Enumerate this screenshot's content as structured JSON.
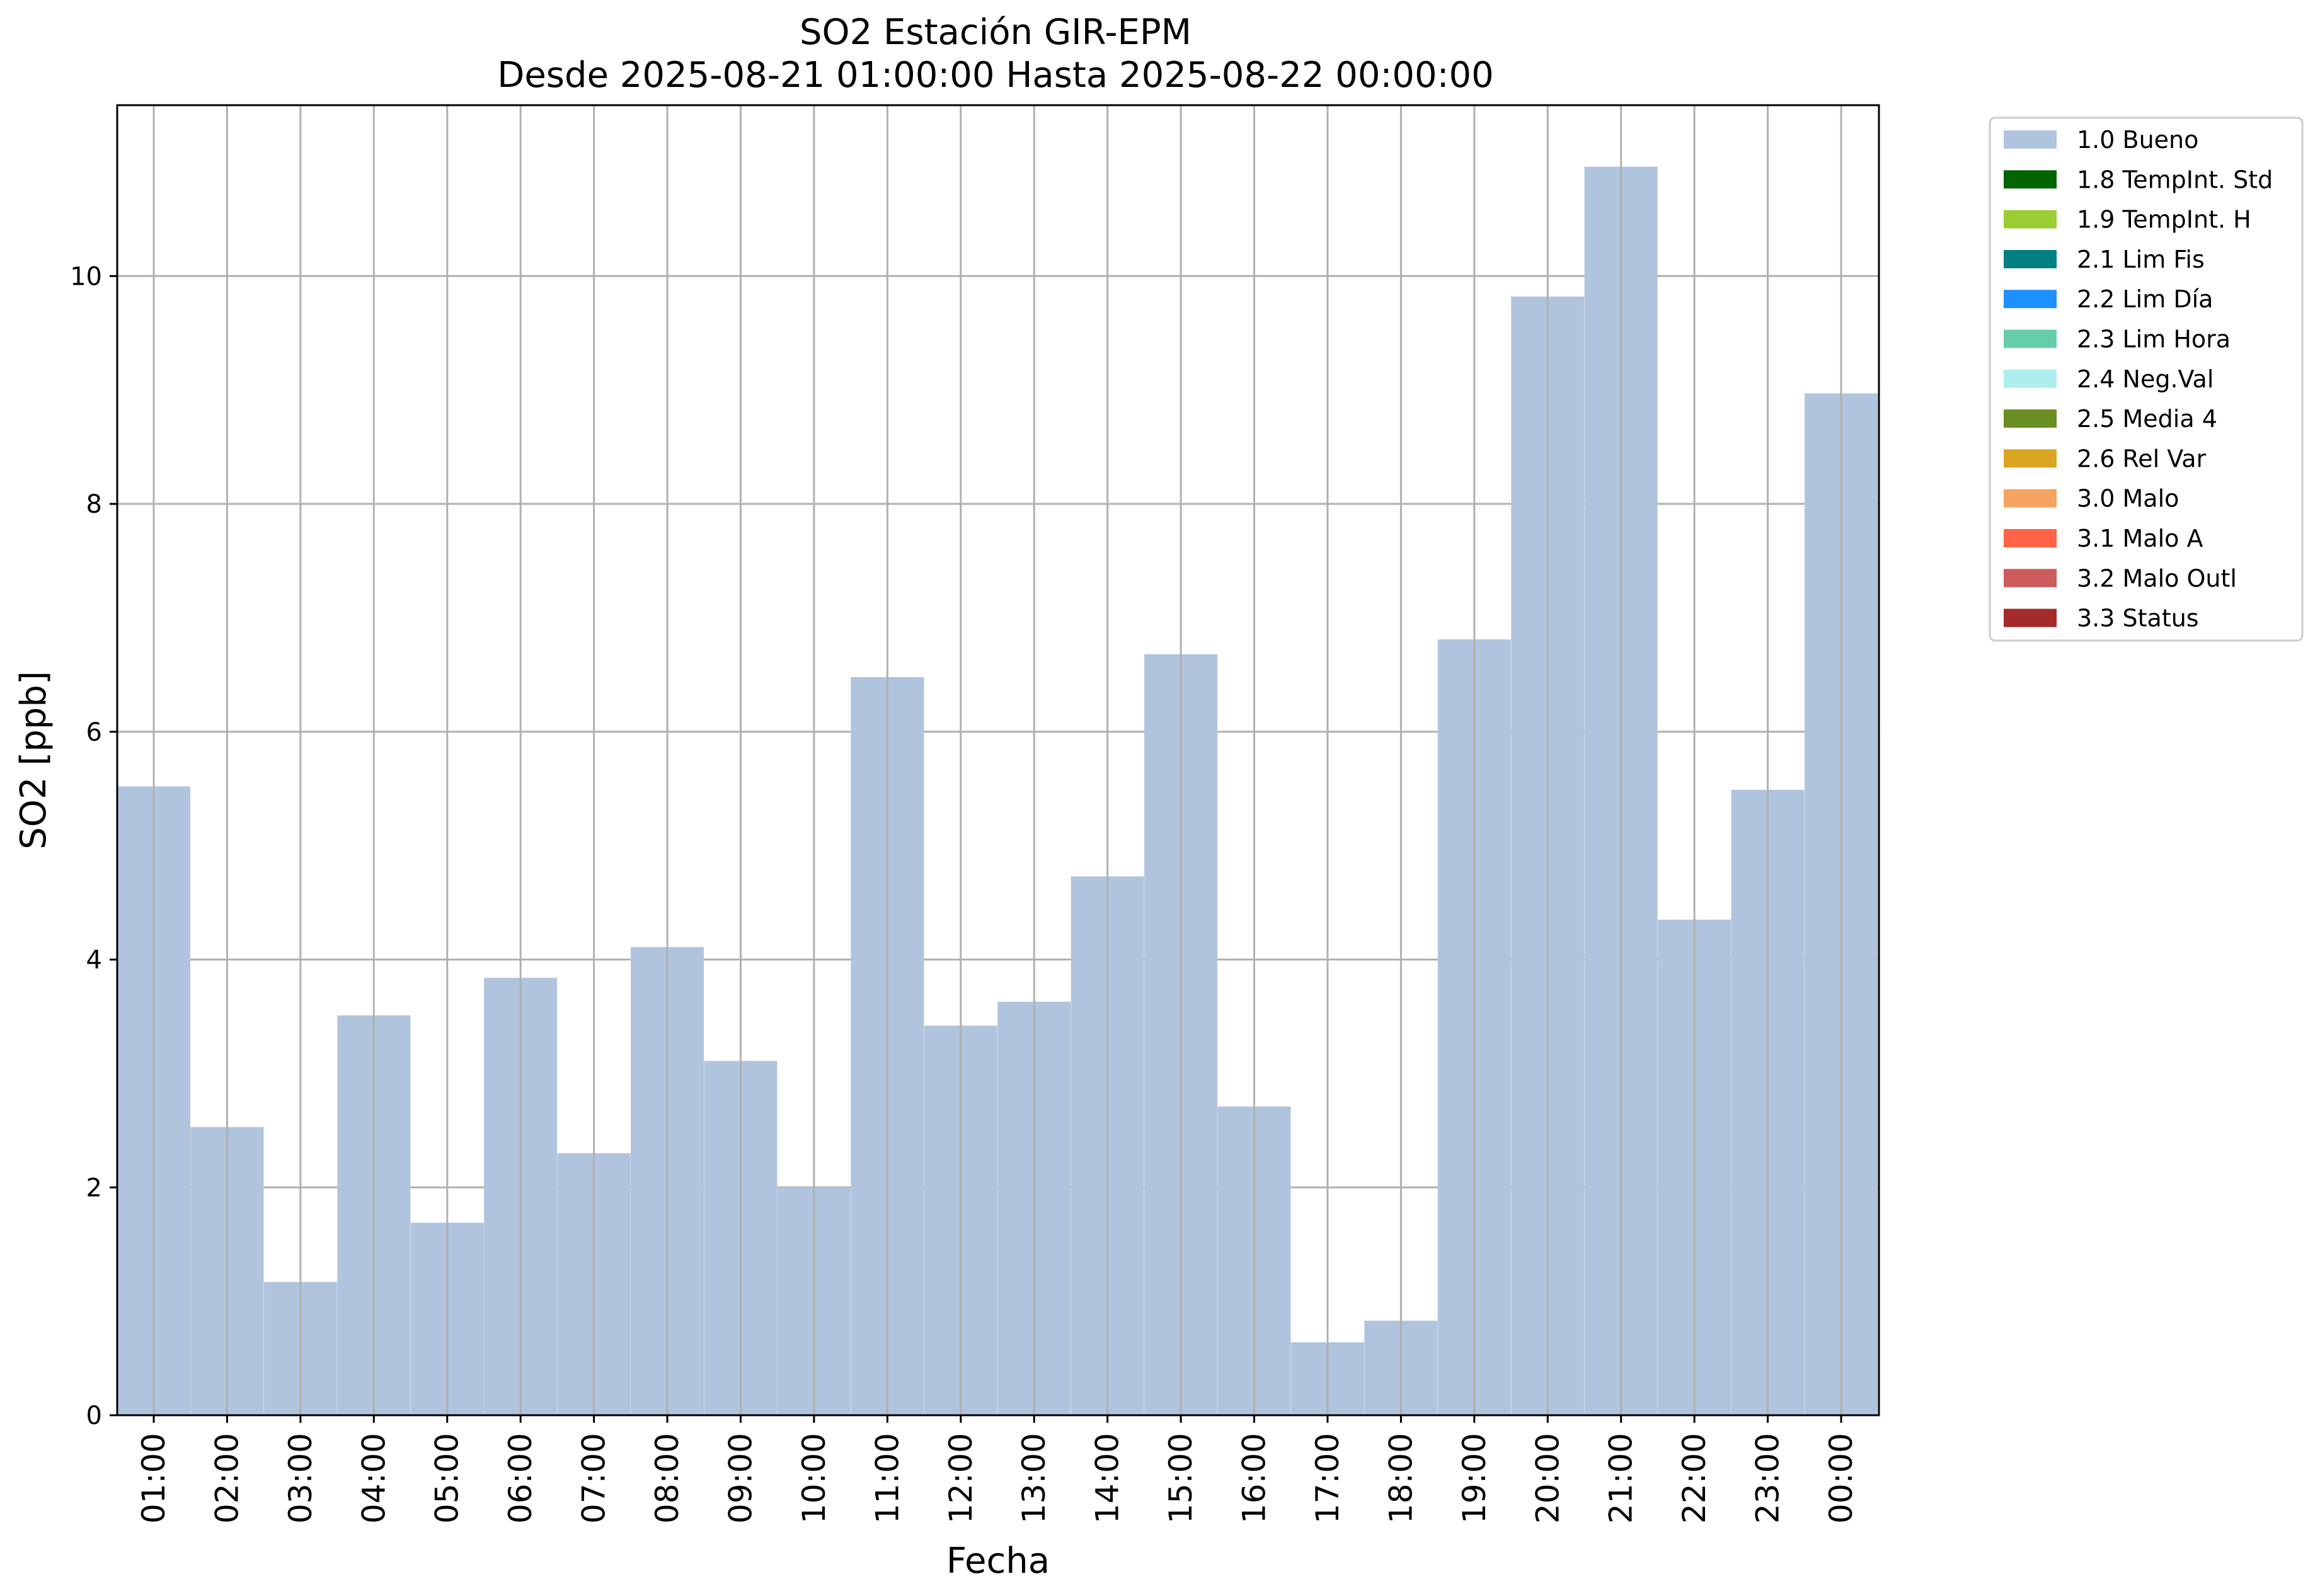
{
  "chart_data": {
    "type": "bar",
    "title": "SO2 Estación GIR-EPM",
    "subtitle": "Desde 2025-08-21 01:00:00 Hasta 2025-08-22 00:00:00",
    "xlabel": "Fecha",
    "ylabel": "SO2 [ppb]",
    "ylim": [
      0,
      11.5
    ],
    "yticks": [
      0,
      2,
      4,
      6,
      8,
      10
    ],
    "grid": true,
    "legend_position": "outside-right",
    "categories": [
      "01:00",
      "02:00",
      "03:00",
      "04:00",
      "05:00",
      "06:00",
      "07:00",
      "08:00",
      "09:00",
      "10:00",
      "11:00",
      "12:00",
      "13:00",
      "14:00",
      "15:00",
      "16:00",
      "17:00",
      "18:00",
      "19:00",
      "20:00",
      "21:00",
      "22:00",
      "23:00",
      "00:00"
    ],
    "series": [
      {
        "name": "1.0 Bueno",
        "color": "#b0c4de",
        "values": [
          5.52,
          2.53,
          1.17,
          3.51,
          1.69,
          3.84,
          2.3,
          4.11,
          3.11,
          2.0,
          6.48,
          3.42,
          3.63,
          4.73,
          6.68,
          2.71,
          0.64,
          0.83,
          6.81,
          9.82,
          10.96,
          4.35,
          5.49,
          8.97
        ]
      }
    ],
    "legend": [
      {
        "label": "1.0 Bueno",
        "color": "#b0c4de"
      },
      {
        "label": "1.8 TempInt. Std",
        "color": "#006400"
      },
      {
        "label": "1.9 TempInt. H",
        "color": "#9acd32"
      },
      {
        "label": "2.1 Lim Fis",
        "color": "#008080"
      },
      {
        "label": "2.2 Lim Día",
        "color": "#1e90ff"
      },
      {
        "label": "2.3 Lim Hora",
        "color": "#66cdaa"
      },
      {
        "label": "2.4 Neg.Val",
        "color": "#afeeee"
      },
      {
        "label": "2.5 Media 4",
        "color": "#6b8e23"
      },
      {
        "label": "2.6 Rel Var",
        "color": "#daa520"
      },
      {
        "label": "3.0 Malo",
        "color": "#f4a460"
      },
      {
        "label": "3.1 Malo A",
        "color": "#ff6347"
      },
      {
        "label": "3.2 Malo Outl",
        "color": "#cd5c5c"
      },
      {
        "label": "3.3 Status",
        "color": "#a52a2a"
      }
    ]
  }
}
